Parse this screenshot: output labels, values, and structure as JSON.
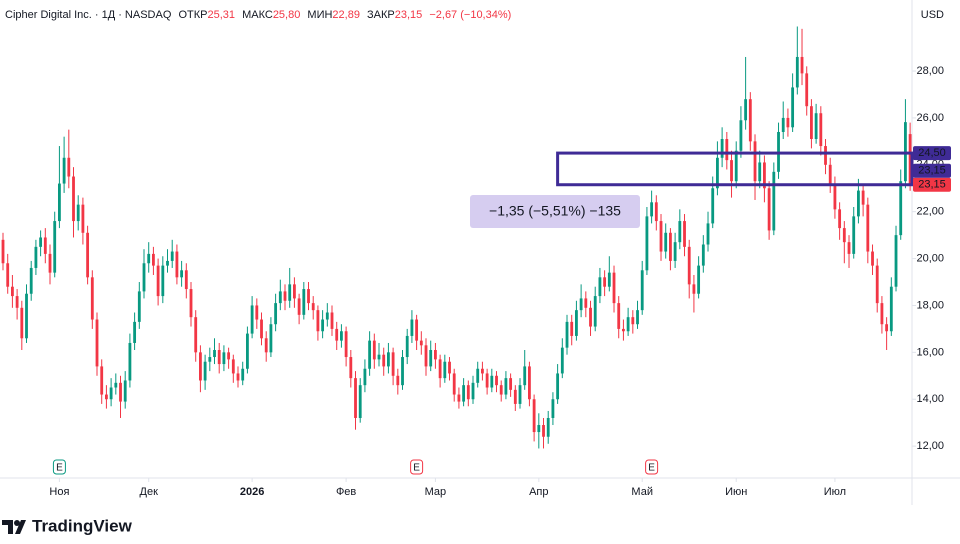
{
  "header": {
    "symbol": "Cipher Digital Inc. · 1Д · NASDAQ",
    "open_label": "ОТКР",
    "open": "25,31",
    "high_label": "МАКС",
    "high": "25,80",
    "low_label": "МИН",
    "low": "22,89",
    "close_label": "ЗАКР",
    "close": "23,15",
    "change": "−2,67 (−10,34%)",
    "currency": "USD"
  },
  "chart_data": {
    "type": "candlestick",
    "up_color": "#089981",
    "down_color": "#f23645",
    "ylim": [
      10.64,
      31.03
    ],
    "xlim": [
      -0.64,
      193.4
    ],
    "yticks": [
      {
        "value": 12,
        "label": "12,00"
      },
      {
        "value": 14,
        "label": "14,00"
      },
      {
        "value": 16,
        "label": "16,00"
      },
      {
        "value": 18,
        "label": "18,00"
      },
      {
        "value": 20,
        "label": "20,00"
      },
      {
        "value": 22,
        "label": "22,00"
      },
      {
        "value": 24,
        "label": "24,00"
      },
      {
        "value": 26,
        "label": "26,00"
      },
      {
        "value": 28,
        "label": "28,00"
      }
    ],
    "xticks": [
      {
        "value": 12,
        "label": "Ноя"
      },
      {
        "value": 31,
        "label": "Дек"
      },
      {
        "value": 53,
        "label": "2026"
      },
      {
        "value": 73,
        "label": "Фев"
      },
      {
        "value": 92,
        "label": "Мар"
      },
      {
        "value": 114,
        "label": "Апр"
      },
      {
        "value": 136,
        "label": "Май"
      },
      {
        "value": 156,
        "label": "Июн"
      },
      {
        "value": 177,
        "label": "Июл"
      }
    ],
    "events": [
      {
        "index": 12,
        "label": "E",
        "color": "#089981"
      },
      {
        "index": 88,
        "label": "E",
        "color": "#f23645"
      },
      {
        "index": 138,
        "label": "E",
        "color": "#f23645"
      }
    ],
    "measure": {
      "start": 118,
      "from": 24.5,
      "to": 23.15,
      "label": "−1,35 (−5,51%) −135",
      "color": "#3f2b96"
    },
    "price_labels": [
      {
        "value": 24.5,
        "label": "24,50",
        "color": "#3f2b96"
      },
      {
        "value": 23.15,
        "label": "23,15",
        "color": "#3f2b96"
      },
      {
        "value": 23.15,
        "label": "23,15",
        "color": "#f23645"
      }
    ],
    "ohlc": [
      [
        20.8,
        21.1,
        19.5,
        19.8
      ],
      [
        19.8,
        20.2,
        18.5,
        18.8
      ],
      [
        18.8,
        19.3,
        17.9,
        18.4
      ],
      [
        18.4,
        18.7,
        17.4,
        17.9
      ],
      [
        17.9,
        18.2,
        16.1,
        16.6
      ],
      [
        16.6,
        18.9,
        16.4,
        18.5
      ],
      [
        18.5,
        19.9,
        18.2,
        19.6
      ],
      [
        19.6,
        20.8,
        19.3,
        20.5
      ],
      [
        20.5,
        21.2,
        20.1,
        20.9
      ],
      [
        20.9,
        21.3,
        19.8,
        20.2
      ],
      [
        20.2,
        20.6,
        18.9,
        19.4
      ],
      [
        19.4,
        22.0,
        19.2,
        21.6
      ],
      [
        21.6,
        24.8,
        21.3,
        23.2
      ],
      [
        23.2,
        25.2,
        22.8,
        24.3
      ],
      [
        24.3,
        25.5,
        23.0,
        23.5
      ],
      [
        23.5,
        23.9,
        20.9,
        21.6
      ],
      [
        21.6,
        22.7,
        21.2,
        22.3
      ],
      [
        22.3,
        22.6,
        20.6,
        21.1
      ],
      [
        21.1,
        21.4,
        18.9,
        19.2
      ],
      [
        19.2,
        19.5,
        17.0,
        17.4
      ],
      [
        17.4,
        17.7,
        15.0,
        15.4
      ],
      [
        15.4,
        15.7,
        13.8,
        14.2
      ],
      [
        14.2,
        14.6,
        13.6,
        14.0
      ],
      [
        14.0,
        14.9,
        13.7,
        14.5
      ],
      [
        14.5,
        15.1,
        14.2,
        14.7
      ],
      [
        14.7,
        15.0,
        13.2,
        13.9
      ],
      [
        13.9,
        15.2,
        13.6,
        14.8
      ],
      [
        14.8,
        16.8,
        14.5,
        16.4
      ],
      [
        16.4,
        17.7,
        16.1,
        17.3
      ],
      [
        17.3,
        19.0,
        17.0,
        18.6
      ],
      [
        18.6,
        20.4,
        18.3,
        19.8
      ],
      [
        19.8,
        20.7,
        19.4,
        20.2
      ],
      [
        20.2,
        20.5,
        19.3,
        19.7
      ],
      [
        19.7,
        20.0,
        18.0,
        18.4
      ],
      [
        18.4,
        20.1,
        18.1,
        19.7
      ],
      [
        19.7,
        20.4,
        19.4,
        19.9
      ],
      [
        19.9,
        20.8,
        19.6,
        20.3
      ],
      [
        20.3,
        20.6,
        18.9,
        19.2
      ],
      [
        19.2,
        19.9,
        18.8,
        19.5
      ],
      [
        19.5,
        19.8,
        18.3,
        18.7
      ],
      [
        18.7,
        19.0,
        17.1,
        17.5
      ],
      [
        17.5,
        17.8,
        15.6,
        16.0
      ],
      [
        16.0,
        16.3,
        14.3,
        14.8
      ],
      [
        14.8,
        15.9,
        14.4,
        15.6
      ],
      [
        15.6,
        16.2,
        15.2,
        15.8
      ],
      [
        15.8,
        16.6,
        15.5,
        16.1
      ],
      [
        16.1,
        16.4,
        15.1,
        15.5
      ],
      [
        15.5,
        16.3,
        15.2,
        16.0
      ],
      [
        16.0,
        16.2,
        15.3,
        15.7
      ],
      [
        15.7,
        15.9,
        14.7,
        15.1
      ],
      [
        15.1,
        15.4,
        14.5,
        14.8
      ],
      [
        14.8,
        15.6,
        14.6,
        15.3
      ],
      [
        15.3,
        17.1,
        15.1,
        16.8
      ],
      [
        16.8,
        18.4,
        16.6,
        18.0
      ],
      [
        18.0,
        18.3,
        17.0,
        17.4
      ],
      [
        17.4,
        17.7,
        16.3,
        16.6
      ],
      [
        16.6,
        16.9,
        15.6,
        16.0
      ],
      [
        16.0,
        17.5,
        15.8,
        17.2
      ],
      [
        17.2,
        18.5,
        16.9,
        18.1
      ],
      [
        18.1,
        19.1,
        17.8,
        18.6
      ],
      [
        18.6,
        18.9,
        17.8,
        18.2
      ],
      [
        18.2,
        19.6,
        17.9,
        18.9
      ],
      [
        18.9,
        19.2,
        17.9,
        18.3
      ],
      [
        18.3,
        18.5,
        17.2,
        17.6
      ],
      [
        17.6,
        19.0,
        17.4,
        18.7
      ],
      [
        18.7,
        19.0,
        17.8,
        18.1
      ],
      [
        18.1,
        18.4,
        17.4,
        17.8
      ],
      [
        17.8,
        18.0,
        16.5,
        16.9
      ],
      [
        16.9,
        17.8,
        16.6,
        17.4
      ],
      [
        17.4,
        18.1,
        17.1,
        17.7
      ],
      [
        17.7,
        18.0,
        16.7,
        17.0
      ],
      [
        17.0,
        17.3,
        16.1,
        16.5
      ],
      [
        16.5,
        17.2,
        16.2,
        16.9
      ],
      [
        16.9,
        17.1,
        15.4,
        15.8
      ],
      [
        15.8,
        16.1,
        14.5,
        14.9
      ],
      [
        14.9,
        15.2,
        12.7,
        13.2
      ],
      [
        13.2,
        14.9,
        13.0,
        14.6
      ],
      [
        14.6,
        15.7,
        14.3,
        15.3
      ],
      [
        15.3,
        16.9,
        15.0,
        16.5
      ],
      [
        16.5,
        16.8,
        15.3,
        15.7
      ],
      [
        15.7,
        16.4,
        15.4,
        15.9
      ],
      [
        15.9,
        16.2,
        15.0,
        15.4
      ],
      [
        15.4,
        16.4,
        15.1,
        16.0
      ],
      [
        16.0,
        16.2,
        14.6,
        15.0
      ],
      [
        15.0,
        15.3,
        14.2,
        14.6
      ],
      [
        14.6,
        16.1,
        14.4,
        15.8
      ],
      [
        15.8,
        17.0,
        15.5,
        16.7
      ],
      [
        16.7,
        17.8,
        16.4,
        17.4
      ],
      [
        17.4,
        17.6,
        16.1,
        16.5
      ],
      [
        16.5,
        16.9,
        15.9,
        16.3
      ],
      [
        16.3,
        16.6,
        15.0,
        15.4
      ],
      [
        15.4,
        16.5,
        15.2,
        16.1
      ],
      [
        16.1,
        16.4,
        15.3,
        15.7
      ],
      [
        15.7,
        15.9,
        14.5,
        14.9
      ],
      [
        14.9,
        15.9,
        14.7,
        15.6
      ],
      [
        15.6,
        15.8,
        14.8,
        15.1
      ],
      [
        15.1,
        15.3,
        13.9,
        14.2
      ],
      [
        14.2,
        14.5,
        13.6,
        13.9
      ],
      [
        13.9,
        14.9,
        13.7,
        14.6
      ],
      [
        14.6,
        14.8,
        13.7,
        14.0
      ],
      [
        14.0,
        15.0,
        13.8,
        14.7
      ],
      [
        14.7,
        15.6,
        14.5,
        15.3
      ],
      [
        15.3,
        15.6,
        14.8,
        15.1
      ],
      [
        15.1,
        15.3,
        14.2,
        14.5
      ],
      [
        14.5,
        15.3,
        14.3,
        15.0
      ],
      [
        15.0,
        15.2,
        14.3,
        14.6
      ],
      [
        14.6,
        14.8,
        13.9,
        14.2
      ],
      [
        14.2,
        15.2,
        14.0,
        14.9
      ],
      [
        14.9,
        15.1,
        14.1,
        14.4
      ],
      [
        14.4,
        14.6,
        13.5,
        13.8
      ],
      [
        13.8,
        14.9,
        13.6,
        14.6
      ],
      [
        14.6,
        16.1,
        14.4,
        15.4
      ],
      [
        15.4,
        15.6,
        13.7,
        14.0
      ],
      [
        14.0,
        14.2,
        12.2,
        12.6
      ],
      [
        12.6,
        13.4,
        11.9,
        12.9
      ],
      [
        12.9,
        13.2,
        11.9,
        12.4
      ],
      [
        12.4,
        13.5,
        12.1,
        13.2
      ],
      [
        13.2,
        14.3,
        12.9,
        14.0
      ],
      [
        14.0,
        15.5,
        13.8,
        15.1
      ],
      [
        15.1,
        16.6,
        14.9,
        16.2
      ],
      [
        16.2,
        17.6,
        15.9,
        17.3
      ],
      [
        17.3,
        17.6,
        16.3,
        16.7
      ],
      [
        16.7,
        18.2,
        16.5,
        17.8
      ],
      [
        17.8,
        18.9,
        17.5,
        18.3
      ],
      [
        18.3,
        18.6,
        17.5,
        17.9
      ],
      [
        17.9,
        18.2,
        16.7,
        17.1
      ],
      [
        17.1,
        18.8,
        16.9,
        18.4
      ],
      [
        18.4,
        19.6,
        18.1,
        19.2
      ],
      [
        19.2,
        19.5,
        18.4,
        18.8
      ],
      [
        18.8,
        20.1,
        18.6,
        19.4
      ],
      [
        19.4,
        19.7,
        17.7,
        18.1
      ],
      [
        18.1,
        18.4,
        16.6,
        17.0
      ],
      [
        17.0,
        17.4,
        16.5,
        16.9
      ],
      [
        16.9,
        17.9,
        16.7,
        17.5
      ],
      [
        17.5,
        17.8,
        16.8,
        17.2
      ],
      [
        17.2,
        18.2,
        17.0,
        17.8
      ],
      [
        17.8,
        19.9,
        17.6,
        19.5
      ],
      [
        19.5,
        22.2,
        19.3,
        21.8
      ],
      [
        21.8,
        22.9,
        21.5,
        22.4
      ],
      [
        22.4,
        22.7,
        21.2,
        21.6
      ],
      [
        21.6,
        21.9,
        19.9,
        20.3
      ],
      [
        20.3,
        21.5,
        20.0,
        21.1
      ],
      [
        21.1,
        21.3,
        19.5,
        19.9
      ],
      [
        19.9,
        21.1,
        19.6,
        20.7
      ],
      [
        20.7,
        22.1,
        20.4,
        21.6
      ],
      [
        21.6,
        21.9,
        20.1,
        20.5
      ],
      [
        20.5,
        20.8,
        18.3,
        18.9
      ],
      [
        18.9,
        19.3,
        17.7,
        18.5
      ],
      [
        18.5,
        20.1,
        18.3,
        19.7
      ],
      [
        19.7,
        21.0,
        19.4,
        20.6
      ],
      [
        20.6,
        22.0,
        20.3,
        21.5
      ],
      [
        21.5,
        23.5,
        21.3,
        23.0
      ],
      [
        23.0,
        25.0,
        22.7,
        24.3
      ],
      [
        24.3,
        25.6,
        23.9,
        25.1
      ],
      [
        25.1,
        25.4,
        23.8,
        24.2
      ],
      [
        24.2,
        24.6,
        22.6,
        23.3
      ],
      [
        23.3,
        25.0,
        23.0,
        24.6
      ],
      [
        24.6,
        26.5,
        24.3,
        25.9
      ],
      [
        25.9,
        28.6,
        25.5,
        26.8
      ],
      [
        26.8,
        27.1,
        24.6,
        25.0
      ],
      [
        25.0,
        25.3,
        22.5,
        23.3
      ],
      [
        23.3,
        24.6,
        23.0,
        24.1
      ],
      [
        24.1,
        24.4,
        22.4,
        23.0
      ],
      [
        23.0,
        23.3,
        20.8,
        21.2
      ],
      [
        21.2,
        24.1,
        21.0,
        23.7
      ],
      [
        23.7,
        25.8,
        23.4,
        25.4
      ],
      [
        25.4,
        26.7,
        25.1,
        26.0
      ],
      [
        26.0,
        26.4,
        25.2,
        25.6
      ],
      [
        25.6,
        27.9,
        25.4,
        27.3
      ],
      [
        27.3,
        29.9,
        27.0,
        28.6
      ],
      [
        28.6,
        29.8,
        27.4,
        27.9
      ],
      [
        27.9,
        28.2,
        26.1,
        26.5
      ],
      [
        26.5,
        26.8,
        24.7,
        25.1
      ],
      [
        25.1,
        26.6,
        24.9,
        26.2
      ],
      [
        26.2,
        26.5,
        24.4,
        24.8
      ],
      [
        24.8,
        25.1,
        23.6,
        24.0
      ],
      [
        24.0,
        24.3,
        22.8,
        23.2
      ],
      [
        23.2,
        23.5,
        21.7,
        22.1
      ],
      [
        22.1,
        22.4,
        20.8,
        21.3
      ],
      [
        21.3,
        21.6,
        19.8,
        20.7
      ],
      [
        20.7,
        21.0,
        19.6,
        20.2
      ],
      [
        20.2,
        22.2,
        20.0,
        21.8
      ],
      [
        21.8,
        23.4,
        21.5,
        22.9
      ],
      [
        22.9,
        23.2,
        21.8,
        22.3
      ],
      [
        22.3,
        22.6,
        19.8,
        20.3
      ],
      [
        20.3,
        20.6,
        19.3,
        19.7
      ],
      [
        19.7,
        20.0,
        17.7,
        18.1
      ],
      [
        18.1,
        18.4,
        16.8,
        17.2
      ],
      [
        17.2,
        17.5,
        16.1,
        16.9
      ],
      [
        16.9,
        19.2,
        16.7,
        18.8
      ],
      [
        18.8,
        21.4,
        18.6,
        21.0
      ],
      [
        21.0,
        23.8,
        20.8,
        23.3
      ],
      [
        23.3,
        26.8,
        23.0,
        25.82
      ],
      [
        25.31,
        25.8,
        22.89,
        23.15
      ]
    ]
  },
  "footer": {
    "brand": "TradingView"
  }
}
